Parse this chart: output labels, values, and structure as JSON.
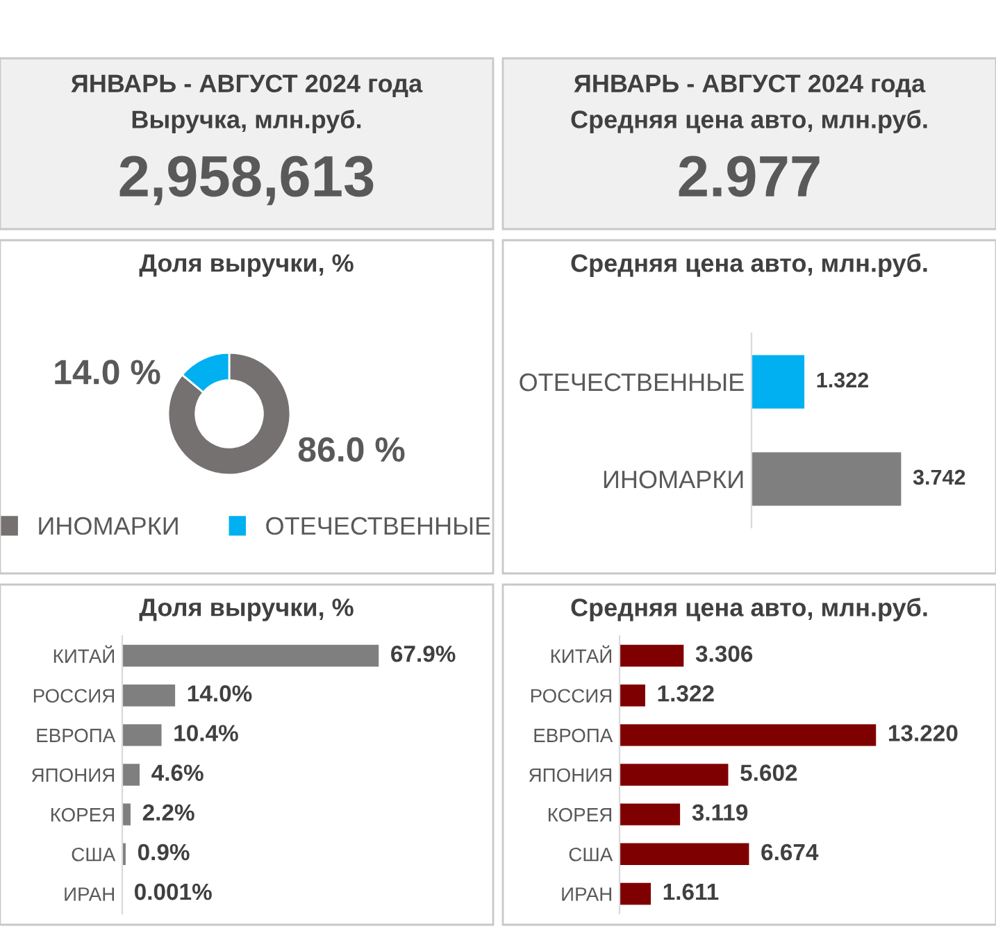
{
  "chart_data": [
    {
      "type": "other",
      "title": "ЯНВАРЬ - АВГУСТ 2024 года",
      "subtitle": "Выручка, млн.руб.",
      "annotations": [
        "2,958,613"
      ]
    },
    {
      "type": "other",
      "title": "ЯНВАРЬ - АВГУСТ 2024 года",
      "subtitle": "Средняя цена авто, млн.руб.",
      "annotations": [
        "2.977"
      ]
    },
    {
      "type": "donut",
      "title": "Доля выручки, %",
      "categories": [
        "ИНОМАРКИ",
        "ОТЕЧЕСТВЕННЫЕ"
      ],
      "values": [
        86.0,
        14.0
      ],
      "colors": [
        "#767171",
        "#00b0f0"
      ],
      "value_labels": [
        "86.0 %",
        "14.0 %"
      ],
      "legend": "bottom"
    },
    {
      "type": "bar",
      "orientation": "horizontal",
      "title": "Средняя цена авто, млн.руб.",
      "categories": [
        "ОТЕЧЕСТВЕННЫЕ",
        "ИНОМАРКИ"
      ],
      "values": [
        1.322,
        3.742
      ],
      "colors": [
        "#00b0f0",
        "#7f7f7f"
      ],
      "value_labels": [
        "1.322",
        "3.742"
      ],
      "tick_labels": "y",
      "grid": false
    },
    {
      "type": "bar",
      "orientation": "horizontal",
      "title": "Доля выручки, %",
      "categories": [
        "КИТАЙ",
        "РОССИЯ",
        "ЕВРОПА",
        "ЯПОНИЯ",
        "КОРЕЯ",
        "США",
        "ИРАН"
      ],
      "values": [
        67.9,
        14.0,
        10.4,
        4.6,
        2.2,
        0.9,
        0.001
      ],
      "color": "#7f7f7f",
      "value_labels": [
        "67.9%",
        "14.0%",
        "10.4%",
        "4.6%",
        "2.2%",
        "0.9%",
        "0.001%"
      ],
      "tick_labels": "y",
      "grid": false
    },
    {
      "type": "bar",
      "orientation": "horizontal",
      "title": "Средняя цена авто, млн.руб.",
      "categories": [
        "КИТАЙ",
        "РОССИЯ",
        "ЕВРОПА",
        "ЯПОНИЯ",
        "КОРЕЯ",
        "США",
        "ИРАН"
      ],
      "values": [
        3.306,
        1.322,
        13.22,
        5.602,
        3.119,
        6.674,
        1.611
      ],
      "color": "#7f0000",
      "value_labels": [
        "3.306",
        "1.322",
        "13.220",
        "5.602",
        "3.119",
        "6.674",
        "1.611"
      ],
      "tick_labels": "y",
      "grid": false
    }
  ]
}
